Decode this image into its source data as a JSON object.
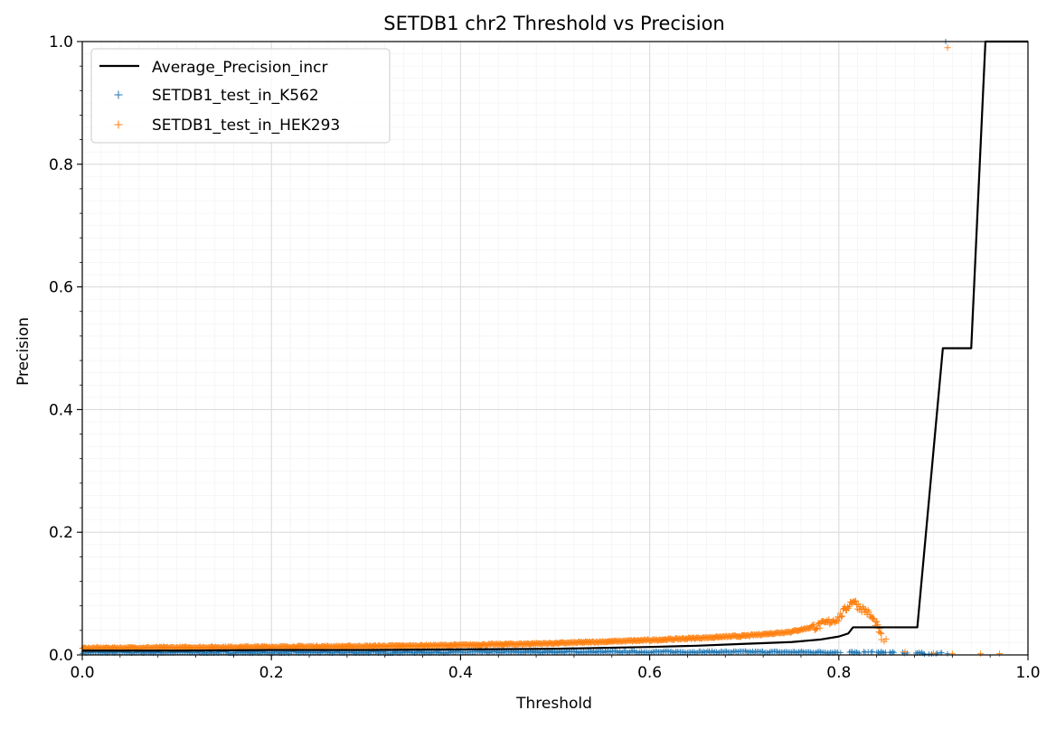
{
  "chart_data": {
    "type": "scatter",
    "title": "SETDB1 chr2 Threshold vs Precision",
    "xlabel": "Threshold",
    "ylabel": "Precision",
    "xlim": [
      0.0,
      1.0
    ],
    "ylim": [
      0.0,
      1.0
    ],
    "xticks": [
      0.0,
      0.2,
      0.4,
      0.6,
      0.8,
      1.0
    ],
    "yticks": [
      0.0,
      0.2,
      0.4,
      0.6,
      0.8,
      1.0
    ],
    "xtick_labels": [
      "0.0",
      "0.2",
      "0.4",
      "0.6",
      "0.8",
      "1.0"
    ],
    "ytick_labels": [
      "0.0",
      "0.2",
      "0.4",
      "0.6",
      "0.8",
      "1.0"
    ],
    "grid": true,
    "minor_grid": true,
    "legend_position": "top-left",
    "series": [
      {
        "name": "Average_Precision_incr",
        "kind": "line",
        "color": "#000000",
        "x": [
          0.0,
          0.1,
          0.2,
          0.3,
          0.4,
          0.5,
          0.6,
          0.65,
          0.7,
          0.75,
          0.78,
          0.8,
          0.81,
          0.815,
          0.85,
          0.883,
          0.91,
          0.94,
          0.955,
          0.96,
          1.0
        ],
        "y": [
          0.007,
          0.007,
          0.008,
          0.008,
          0.009,
          0.01,
          0.013,
          0.015,
          0.018,
          0.021,
          0.025,
          0.03,
          0.035,
          0.045,
          0.045,
          0.045,
          0.5,
          0.5,
          1.0,
          1.0,
          1.0
        ]
      },
      {
        "name": "SETDB1_test_in_K562",
        "kind": "scatter",
        "marker": "+",
        "color": "#1f77b4",
        "x_range": [
          0.0,
          0.915
        ],
        "y_trend": [
          [
            0.0,
            0.004
          ],
          [
            0.3,
            0.004
          ],
          [
            0.5,
            0.005
          ],
          [
            0.7,
            0.005
          ],
          [
            0.85,
            0.004
          ],
          [
            0.915,
            0.002
          ]
        ],
        "outlier": {
          "x": 0.913,
          "y": 1.0
        }
      },
      {
        "name": "SETDB1_test_in_HEK293",
        "kind": "scatter",
        "marker": "+",
        "color": "#ff7f0e",
        "y_trend": [
          [
            0.0,
            0.011
          ],
          [
            0.1,
            0.012
          ],
          [
            0.2,
            0.013
          ],
          [
            0.3,
            0.014
          ],
          [
            0.4,
            0.016
          ],
          [
            0.5,
            0.019
          ],
          [
            0.6,
            0.024
          ],
          [
            0.7,
            0.031
          ],
          [
            0.75,
            0.038
          ],
          [
            0.78,
            0.048
          ],
          [
            0.8,
            0.06
          ],
          [
            0.81,
            0.08
          ],
          [
            0.815,
            0.09
          ],
          [
            0.82,
            0.08
          ],
          [
            0.83,
            0.07
          ],
          [
            0.84,
            0.05
          ],
          [
            0.845,
            0.03
          ]
        ],
        "sparse_points": [
          [
            0.845,
            0.025
          ],
          [
            0.848,
            0.022
          ],
          [
            0.85,
            0.026
          ],
          [
            0.87,
            0.005
          ],
          [
            0.9,
            0.003
          ],
          [
            0.92,
            0.002
          ],
          [
            0.95,
            0.002
          ],
          [
            0.97,
            0.002
          ]
        ],
        "outlier": {
          "x": 0.915,
          "y": 0.99
        }
      }
    ]
  }
}
